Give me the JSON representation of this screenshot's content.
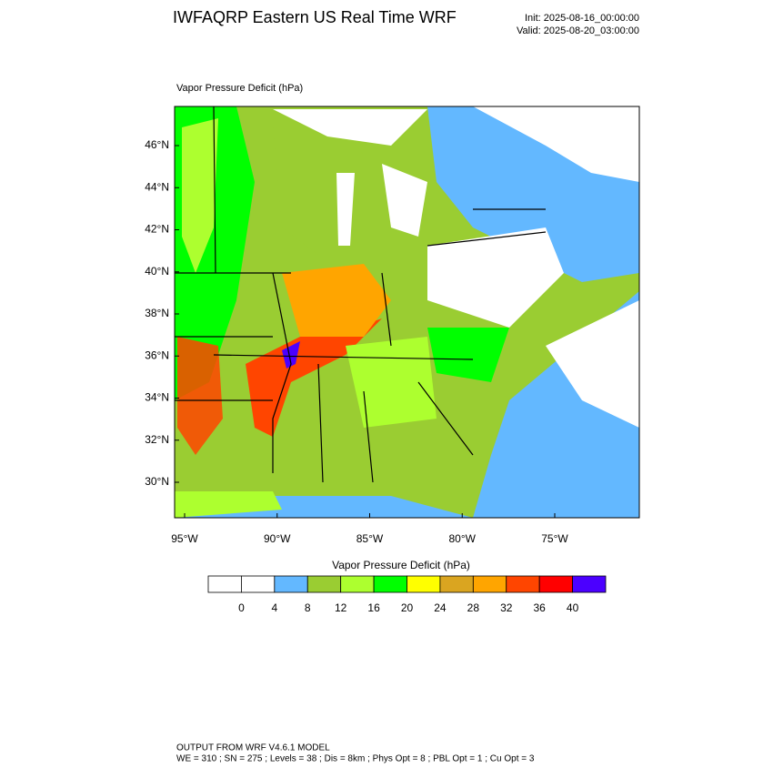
{
  "header": {
    "title": "IWFAQRP Eastern US Real Time WRF",
    "init": "Init: 2025-08-16_00:00:00",
    "valid": "Valid: 2025-08-20_03:00:00"
  },
  "map": {
    "title": "Vapor Pressure Deficit   (hPa)",
    "lat_labels": [
      "46°N",
      "44°N",
      "42°N",
      "40°N",
      "38°N",
      "36°N",
      "34°N",
      "32°N",
      "30°N"
    ],
    "lon_labels": [
      "95°W",
      "90°W",
      "85°W",
      "80°W",
      "75°W"
    ]
  },
  "colorbar": {
    "title": "Vapor Pressure Deficit  (hPa)",
    "colors": [
      "#ffffff",
      "#ffffff",
      "#63b8ff",
      "#9acd32",
      "#adff2f",
      "#00ff00",
      "#ffff00",
      "#daa520",
      "#ffa500",
      "#ff4500",
      "#ff0000",
      "#4b00ff"
    ],
    "labels": [
      0,
      4,
      8,
      12,
      16,
      20,
      24,
      28,
      32,
      36,
      40
    ]
  },
  "footer": {
    "line1": "OUTPUT FROM WRF V4.6.1 MODEL",
    "line2": "WE = 310 ; SN = 275 ; Levels = 38 ; Dis = 8km ; Phys Opt = 8 ; PBL Opt = 1 ; Cu Opt = 3"
  }
}
